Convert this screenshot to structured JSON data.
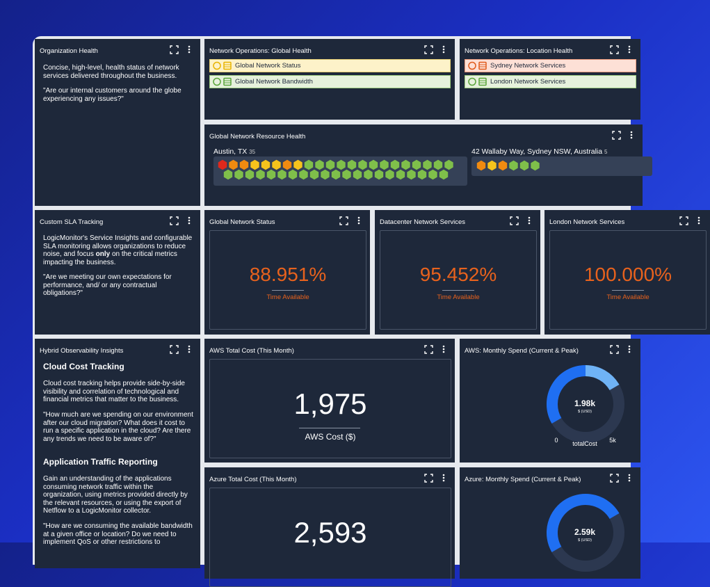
{
  "org_health": {
    "title": "Organization Health",
    "p1": "Concise, high-level, health status of network services delivered throughout the business.",
    "p2": "\"Are our internal customers around the globe experiencing any issues?\""
  },
  "netops_global": {
    "title": "Network Operations: Global Health",
    "items": [
      "Global Network Status",
      "Global Network Bandwidth"
    ]
  },
  "netops_location": {
    "title": "Network Operations: Location Health",
    "items": [
      "Sydney Network Services",
      "London Network Services"
    ]
  },
  "resource_health": {
    "title": "Global Network Resource Health",
    "groups": [
      {
        "name": "Austin, TX",
        "count": "35"
      },
      {
        "name": "42 Wallaby Way, Sydney NSW, Australia",
        "count": "5"
      }
    ]
  },
  "sla": {
    "title": "Custom SLA Tracking",
    "p1a": "LogicMonitor's Service Insights and configurable SLA monitoring allows organizations to reduce noise, and focus ",
    "p1b": "only",
    "p1c": " on the critical metrics impacting the business.",
    "p2": "\"Are we meeting our own expectations for performance, and/ or any contractual obligations?\""
  },
  "availability": [
    {
      "title": "Global Network Status",
      "value": "88.951%",
      "label": "Time Available"
    },
    {
      "title": "Datacenter Network Services",
      "value": "95.452%",
      "label": "Time Available"
    },
    {
      "title": "London Network Services",
      "value": "100.000%",
      "label": "Time Available"
    }
  ],
  "hybrid": {
    "title": "Hybrid Observability Insights",
    "h1": "Cloud Cost Tracking",
    "p1": "Cloud cost tracking helps provide side-by-side visibility and correlation of technological and financial metrics that matter to the business.",
    "p2": "\"How much are we spending on our environment after our cloud migration? What does it cost to run a specific application in the cloud? Are there any trends we need to be aware of?\"",
    "h2": "Application Traffic Reporting",
    "p3": "Gain an understanding of the applications consuming network traffic within the organization, using metrics provided directly by the relevant resources, or using the export of Netflow to a LogicMonitor collector.",
    "p4": "\"How are we consuming the available bandwidth at a given office or location? Do we need to implement QoS or other restrictions to"
  },
  "aws_cost": {
    "title": "AWS Total Cost (This Month)",
    "value": "1,975",
    "label": "AWS Cost ($)"
  },
  "aws_spend": {
    "title": "AWS: Monthly Spend (Current & Peak)",
    "value": "1.98k",
    "unit": "$ (USD)",
    "min": "0",
    "max": "5k",
    "metric": "totalCost"
  },
  "azure_cost": {
    "title": "Azure Total Cost (This Month)",
    "value": "2,593"
  },
  "azure_spend": {
    "title": "Azure: Monthly Spend (Current & Peak)",
    "value": "2.59k",
    "unit": "$ (USD)"
  }
}
